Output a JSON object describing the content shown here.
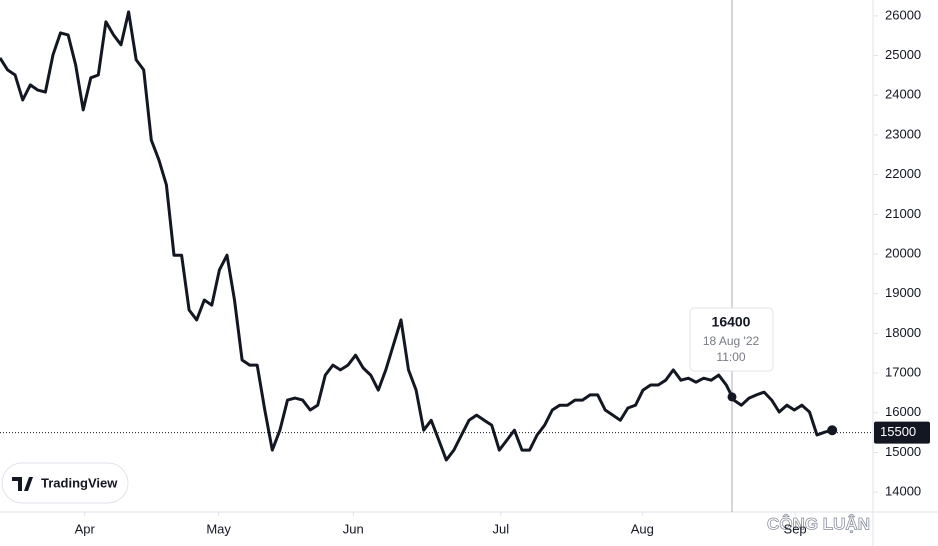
{
  "chart_data": {
    "type": "line",
    "values": [
      24940,
      24640,
      24510,
      23880,
      24260,
      24130,
      24080,
      25020,
      25570,
      25520,
      24760,
      23630,
      24440,
      24510,
      25850,
      25520,
      25270,
      26100,
      24890,
      24640,
      22870,
      22370,
      21740,
      19970,
      19970,
      18590,
      18340,
      18840,
      18710,
      19600,
      19970,
      18840,
      17330,
      17200,
      17200,
      16070,
      15060,
      15560,
      16320,
      16370,
      16320,
      16070,
      16190,
      16950,
      17200,
      17080,
      17200,
      17450,
      17130,
      16950,
      16570,
      17080,
      17710,
      18340,
      17080,
      16570,
      15560,
      15810,
      15310,
      14810,
      15060,
      15440,
      15810,
      15940,
      15810,
      15690,
      15060,
      15310,
      15560,
      15060,
      15060,
      15440,
      15690,
      16070,
      16190,
      16190,
      16320,
      16320,
      16450,
      16450,
      16070,
      15940,
      15810,
      16120,
      16190,
      16570,
      16700,
      16700,
      16820,
      17080,
      16820,
      16870,
      16770,
      16870,
      16820,
      16950,
      16700,
      16320,
      16190,
      16370,
      16450,
      16520,
      16320,
      16020,
      16190,
      16070,
      16190,
      16020,
      15440,
      15510,
      15560
    ],
    "color": "#131722",
    "xlim": [
      0,
      115
    ],
    "xticks": [
      {
        "value": 11.2,
        "label": "Apr"
      },
      {
        "value": 28.9,
        "label": "May"
      },
      {
        "value": 46.7,
        "label": "Jun"
      },
      {
        "value": 66.2,
        "label": "Jul"
      },
      {
        "value": 84.9,
        "label": "Aug"
      },
      {
        "value": 105.1,
        "label": "Sep"
      }
    ],
    "ylim": [
      13550,
      26400
    ],
    "yticks": [
      14000,
      15000,
      16000,
      17000,
      18000,
      19000,
      20000,
      21000,
      22000,
      23000,
      24000,
      25000,
      26000
    ],
    "last_value": 15500,
    "tooltip": {
      "value": 16400,
      "date": "18 Aug '22",
      "time": "11:00"
    },
    "logo": "TradingView",
    "watermark": "CÔNG LUẬN"
  }
}
